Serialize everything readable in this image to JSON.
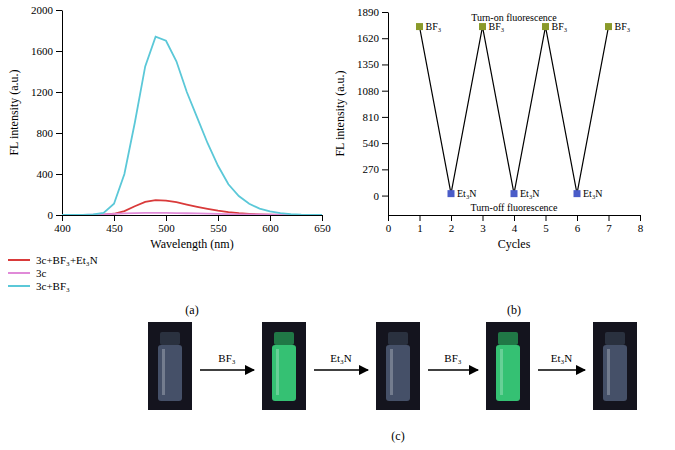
{
  "chart_data": [
    {
      "type": "line",
      "panel_label": "(a)",
      "x_label": "Wavelength (nm)",
      "y_label": "FL intensity (a.u.)",
      "x": [
        400,
        410,
        420,
        430,
        440,
        450,
        460,
        470,
        480,
        490,
        500,
        510,
        520,
        530,
        540,
        550,
        560,
        570,
        580,
        590,
        600,
        610,
        620,
        630,
        640,
        650
      ],
      "series": [
        {
          "name": "3c+BF₃+Et₃N",
          "color": "#d93a3a",
          "values": [
            0,
            0,
            0,
            1,
            3,
            12,
            38,
            85,
            128,
            145,
            140,
            125,
            102,
            80,
            60,
            42,
            28,
            18,
            11,
            6,
            3,
            2,
            1,
            0,
            0,
            0
          ]
        },
        {
          "name": "3c",
          "color": "#e08ad8",
          "values": [
            1,
            1,
            2,
            3,
            6,
            10,
            15,
            18,
            20,
            20,
            20,
            19,
            17,
            15,
            13,
            11,
            9,
            7,
            6,
            5,
            4,
            3,
            2,
            2,
            1,
            1
          ]
        },
        {
          "name": "3c+BF₃",
          "color": "#5bc8d8",
          "values": [
            0,
            0,
            2,
            5,
            20,
            110,
            400,
            900,
            1450,
            1740,
            1700,
            1500,
            1200,
            950,
            700,
            480,
            300,
            185,
            110,
            62,
            35,
            18,
            8,
            3,
            1,
            0
          ]
        }
      ],
      "xlim": [
        400,
        650
      ],
      "xticks": [
        400,
        450,
        500,
        550,
        600,
        650
      ],
      "ylim": [
        0,
        2000
      ],
      "yticks": [
        0,
        400,
        800,
        1200,
        1600,
        2000
      ],
      "legend": "bottom"
    },
    {
      "type": "line",
      "panel_label": "(b)",
      "x_label": "Cycles",
      "y_label": "FL intensity (a.u.)",
      "annotations": [
        "Turn-on fluorescence",
        "Turn-off fluorescence"
      ],
      "x": [
        1,
        2,
        3,
        4,
        5,
        6,
        7
      ],
      "series": [
        {
          "color": "#000000",
          "marker": "square",
          "colors": [
            "#8a9a2a",
            "#4a5cc8",
            "#8a9a2a",
            "#4a5cc8",
            "#8a9a2a",
            "#4a5cc8",
            "#8a9a2a"
          ],
          "values": [
            1740,
            20,
            1740,
            20,
            1740,
            20,
            1740
          ],
          "point_labels": [
            "BF₃",
            "Et₃N",
            "BF₃",
            "Et₃N",
            "BF₃",
            "Et₃N",
            "BF₃"
          ]
        }
      ],
      "xlim": [
        0,
        8
      ],
      "xticks": [
        0,
        1,
        2,
        3,
        4,
        5,
        6,
        7,
        8
      ],
      "ylim": [
        -200,
        1890
      ],
      "yticks": [
        0,
        270,
        540,
        810,
        1080,
        1350,
        1620,
        1890
      ]
    }
  ],
  "diagram": {
    "panel_label": "(c)",
    "vials": [
      {
        "color": "#4a5670"
      },
      {
        "color": "#39d47c"
      },
      {
        "color": "#4a5670"
      },
      {
        "color": "#39d47c"
      },
      {
        "color": "#4a5670"
      }
    ],
    "steps": [
      "BF₃",
      "Et₃N",
      "BF₃",
      "Et₃N"
    ]
  }
}
